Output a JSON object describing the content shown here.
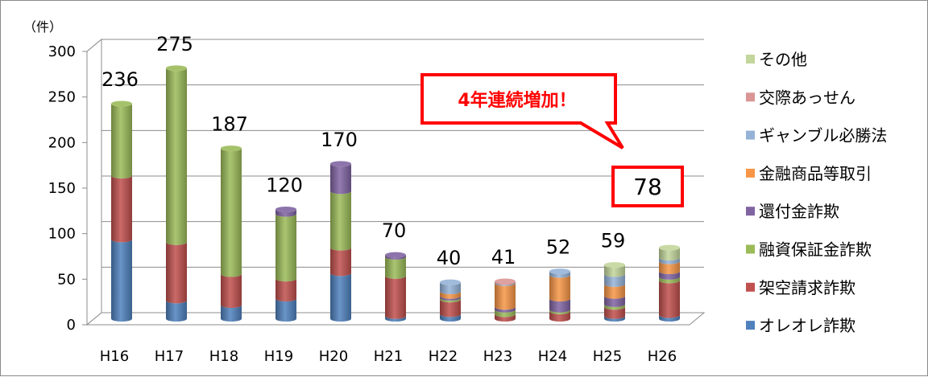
{
  "chart_data": {
    "type": "bar",
    "stacked": true,
    "unit_label": "（件）",
    "categories": [
      "H16",
      "H17",
      "H18",
      "H19",
      "H20",
      "H21",
      "H22",
      "H23",
      "H24",
      "H25",
      "H26"
    ],
    "ylim": [
      0,
      300
    ],
    "yticks": [
      0,
      50,
      100,
      150,
      200,
      250,
      300
    ],
    "grid": true,
    "legend_position": "right",
    "series": [
      {
        "name": "オレオレ詐欺",
        "color": "#4f81bd",
        "values": [
          87,
          20,
          15,
          22,
          50,
          3,
          5,
          0,
          0,
          3,
          4
        ]
      },
      {
        "name": "架空請求詐欺",
        "color": "#c0504d",
        "values": [
          70,
          64,
          34,
          22,
          28,
          44,
          16,
          5,
          8,
          10,
          38
        ]
      },
      {
        "name": "融資保証金詐欺",
        "color": "#9bbb59",
        "values": [
          79,
          191,
          138,
          71,
          62,
          21,
          2,
          5,
          2,
          3,
          4
        ]
      },
      {
        "name": "還付金詐欺",
        "color": "#8064a2",
        "values": [
          0,
          0,
          0,
          5,
          30,
          2,
          2,
          3,
          12,
          9,
          6
        ]
      },
      {
        "name": "金融商品等取引",
        "color": "#f79646",
        "values": [
          0,
          0,
          0,
          0,
          0,
          0,
          5,
          26,
          26,
          13,
          11
        ]
      },
      {
        "name": "ギャンブル必勝法",
        "color": "#95b3d7",
        "values": [
          0,
          0,
          0,
          0,
          0,
          0,
          10,
          1,
          4,
          11,
          4
        ]
      },
      {
        "name": "交際あっせん",
        "color": "#d99694",
        "values": [
          0,
          0,
          0,
          0,
          0,
          0,
          0,
          1,
          0,
          0,
          0
        ]
      },
      {
        "name": "その他",
        "color": "#c3d69b",
        "values": [
          0,
          0,
          0,
          0,
          0,
          0,
          0,
          0,
          0,
          10,
          11
        ]
      }
    ],
    "totals": [
      "236",
      "275",
      "187",
      "120",
      "170",
      "70",
      "40",
      "41",
      "52",
      "59",
      "78"
    ],
    "highlight_index": 10,
    "highlight_color": "#ff0000",
    "annotation": "4年連続増加！"
  }
}
